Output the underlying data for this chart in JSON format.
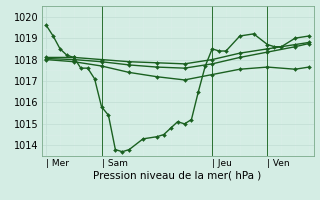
{
  "background_color": "#d4ede4",
  "grid_color_major": "#c0ddd4",
  "grid_color_minor": "#daeee8",
  "line_color": "#1a6020",
  "vline_color": "#2a7030",
  "title": "Pression niveau de la mer( hPa )",
  "xlabel_ticks": [
    "| Mer",
    "| Sam",
    "| Jeu",
    "| Ven"
  ],
  "xlabel_tick_positions": [
    0,
    24,
    72,
    96
  ],
  "ylim": [
    1013.5,
    1020.5
  ],
  "yticks": [
    1014,
    1015,
    1016,
    1017,
    1018,
    1019,
    1020
  ],
  "series1": {
    "x": [
      0,
      3,
      6,
      9,
      12,
      15,
      18,
      21,
      24,
      27,
      30,
      33,
      36,
      42,
      48,
      51,
      54,
      57,
      60,
      63,
      66,
      69,
      72,
      75,
      78,
      84,
      90,
      96,
      99,
      102,
      108,
      114
    ],
    "y": [
      1019.6,
      1019.1,
      1018.5,
      1018.2,
      1018.1,
      1017.6,
      1017.6,
      1017.1,
      1015.8,
      1015.4,
      1013.8,
      1013.7,
      1013.8,
      1014.3,
      1014.4,
      1014.5,
      1014.8,
      1015.1,
      1015.0,
      1015.2,
      1016.5,
      1017.7,
      1018.5,
      1018.4,
      1018.4,
      1019.1,
      1019.2,
      1018.7,
      1018.6,
      1018.6,
      1019.0,
      1019.1
    ]
  },
  "series2": {
    "x": [
      0,
      12,
      24,
      36,
      48,
      60,
      72,
      84,
      96,
      108,
      114
    ],
    "y": [
      1018.1,
      1018.1,
      1018.0,
      1017.9,
      1017.85,
      1017.8,
      1018.0,
      1018.3,
      1018.5,
      1018.7,
      1018.8
    ]
  },
  "series3": {
    "x": [
      0,
      12,
      24,
      36,
      48,
      60,
      72,
      84,
      96,
      108,
      114
    ],
    "y": [
      1018.05,
      1018.0,
      1017.9,
      1017.75,
      1017.65,
      1017.6,
      1017.8,
      1018.1,
      1018.35,
      1018.6,
      1018.75
    ]
  },
  "series4": {
    "x": [
      0,
      12,
      24,
      36,
      48,
      60,
      72,
      84,
      96,
      108,
      114
    ],
    "y": [
      1018.0,
      1017.9,
      1017.7,
      1017.4,
      1017.2,
      1017.05,
      1017.3,
      1017.55,
      1017.65,
      1017.55,
      1017.65
    ]
  },
  "vlines": [
    24,
    72,
    96
  ],
  "marker": "D",
  "markersize": 2.0,
  "linewidth": 1.0
}
